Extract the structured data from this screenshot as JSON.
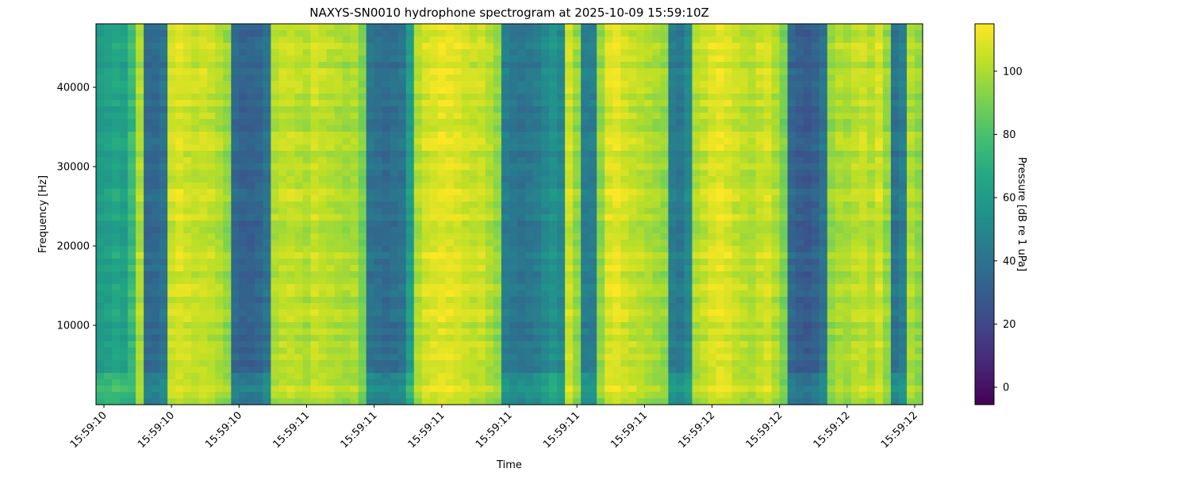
{
  "chart_data": {
    "type": "heatmap",
    "title": "NAXYS-SN0010 hydrophone spectrogram at 2025-10-09 15:59:10Z",
    "xlabel": "Time",
    "ylabel": "Frequency [Hz]",
    "colorbar_label": "Pressure [dB re 1 uPa]",
    "colormap": "viridis",
    "ylim": [
      0,
      48000
    ],
    "clim": [
      -5.5,
      115
    ],
    "x_ticks": [
      "15:59:10",
      "15:59:10",
      "15:59:10",
      "15:59:11",
      "15:59:11",
      "15:59:11",
      "15:59:11",
      "15:59:11",
      "15:59:11",
      "15:59:12",
      "15:59:12",
      "15:59:12",
      "15:59:12"
    ],
    "y_ticks": [
      10000,
      20000,
      30000,
      40000
    ],
    "colorbar_ticks": [
      0,
      20,
      40,
      60,
      80,
      100
    ],
    "column_levels_db": [
      60,
      62,
      65,
      62,
      75,
      100,
      35,
      35,
      40,
      105,
      108,
      106,
      104,
      105,
      103,
      100,
      95,
      35,
      32,
      32,
      34,
      40,
      100,
      103,
      104,
      102,
      100,
      105,
      103,
      101,
      100,
      98,
      100,
      90,
      40,
      38,
      36,
      38,
      40,
      60,
      100,
      106,
      108,
      110,
      109,
      108,
      106,
      104,
      105,
      100,
      95,
      45,
      42,
      40,
      42,
      44,
      50,
      55,
      50,
      105,
      95,
      45,
      45,
      95,
      108,
      110,
      106,
      104,
      102,
      100,
      98,
      95,
      45,
      42,
      50,
      100,
      104,
      108,
      110,
      108,
      104,
      102,
      100,
      104,
      106,
      100,
      90,
      35,
      30,
      28,
      32,
      40,
      95,
      100,
      98,
      102,
      104,
      100,
      106,
      95,
      40,
      45,
      100,
      95
    ]
  }
}
